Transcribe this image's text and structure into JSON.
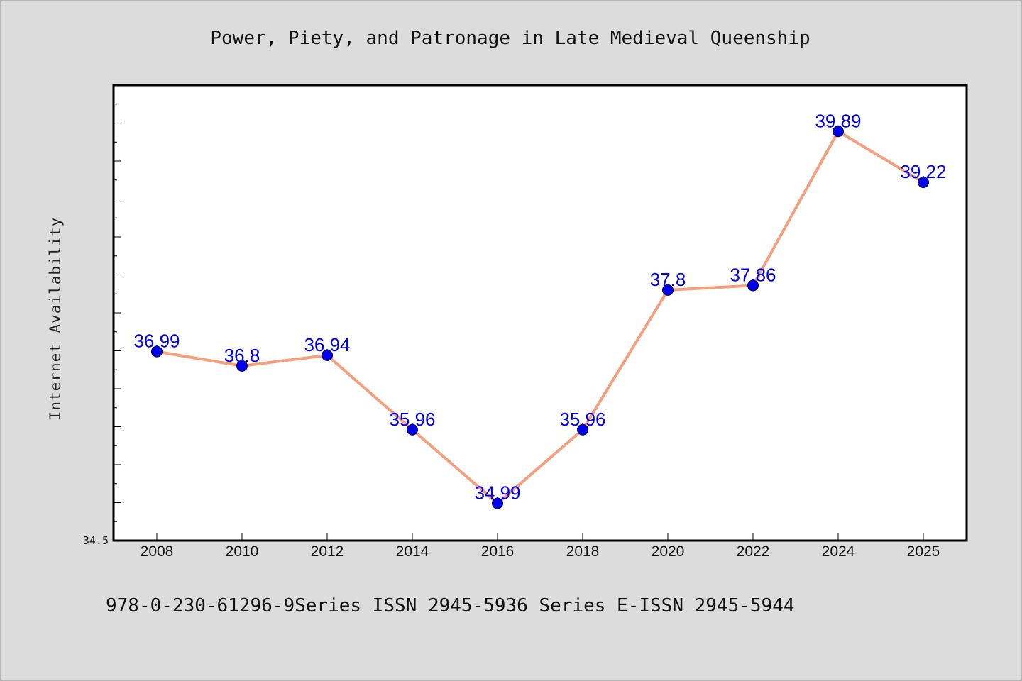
{
  "chart_data": {
    "type": "line",
    "title": "Power, Piety, and Patronage in Late Medieval Queenship",
    "xlabel": "",
    "ylabel": "Internet Availability",
    "categories": [
      "2008",
      "2010",
      "2012",
      "2014",
      "2016",
      "2018",
      "2020",
      "2022",
      "2024",
      "2025"
    ],
    "series": [
      {
        "values": [
          36.99,
          36.8,
          36.94,
          35.96,
          34.99,
          35.96,
          37.8,
          37.86,
          39.89,
          39.22
        ],
        "labels": [
          "36.99",
          "36.8",
          "36.94",
          "35.96",
          "34.99",
          "35.96",
          "37.8",
          "37.86",
          "39.89",
          "39.22"
        ],
        "line_color": "#f4a07e",
        "marker_color": "#0000ee",
        "label_color": "#0000ee"
      }
    ],
    "ylim": [
      34.5,
      40.5
    ],
    "yticks_labeled": [
      "34.5"
    ],
    "grid": false,
    "legend": "none"
  },
  "footer": {
    "text": "978-0-230-61296-9Series ISSN 2945-5936 Series E-ISSN 2945-5944"
  },
  "colors": {
    "background": "#dcdcdc",
    "plot_background": "#ffffff",
    "axis": "#000000"
  }
}
